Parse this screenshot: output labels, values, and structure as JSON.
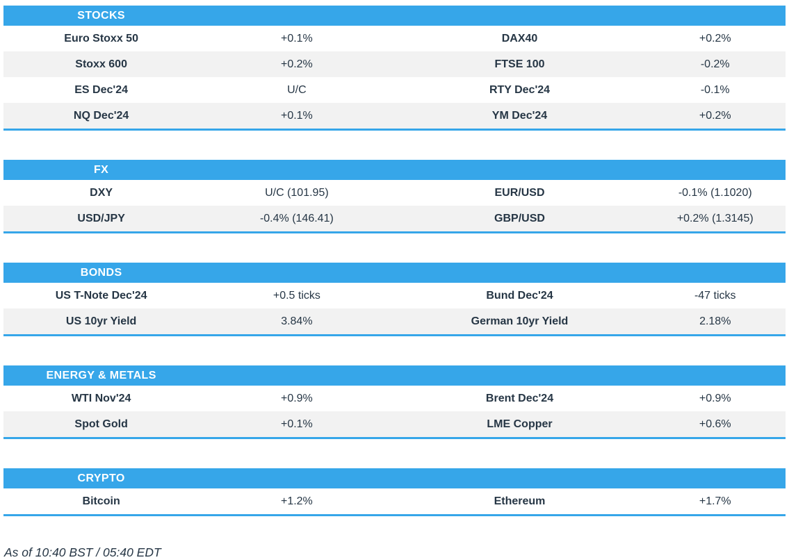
{
  "theme": {
    "header_bg": "#36a6e9",
    "header_text": "#ffffff",
    "row_alt_bg": "#f2f2f2",
    "text_color": "#263645",
    "section_border": "#36a6e9"
  },
  "sections": [
    {
      "title": "STOCKS",
      "rows": [
        [
          "Euro Stoxx 50",
          "+0.1%",
          "DAX40",
          "+0.2%"
        ],
        [
          "Stoxx 600",
          "+0.2%",
          "FTSE 100",
          "-0.2%"
        ],
        [
          "ES Dec'24",
          "U/C",
          "RTY Dec'24",
          "-0.1%"
        ],
        [
          "NQ Dec'24",
          "+0.1%",
          "YM Dec'24",
          "+0.2%"
        ]
      ]
    },
    {
      "title": "FX",
      "rows": [
        [
          "DXY",
          "U/C (101.95)",
          "EUR/USD",
          "-0.1% (1.1020)"
        ],
        [
          "USD/JPY",
          "-0.4% (146.41)",
          "GBP/USD",
          "+0.2% (1.3145)"
        ]
      ]
    },
    {
      "title": "BONDS",
      "rows": [
        [
          "US T-Note Dec'24",
          "+0.5 ticks",
          "Bund Dec'24",
          "-47 ticks"
        ],
        [
          "US 10yr Yield",
          "3.84%",
          "German 10yr Yield",
          "2.18%"
        ]
      ]
    },
    {
      "title": "ENERGY & METALS",
      "rows": [
        [
          "WTI Nov'24",
          "+0.9%",
          "Brent Dec'24",
          "+0.9%"
        ],
        [
          "Spot Gold",
          "+0.1%",
          "LME Copper",
          "+0.6%"
        ]
      ]
    },
    {
      "title": "CRYPTO",
      "rows": [
        [
          "Bitcoin",
          "+1.2%",
          "Ethereum",
          "+1.7%"
        ]
      ]
    }
  ],
  "footer": {
    "as_of": "As of 10:40 BST / 05:40 EDT"
  }
}
